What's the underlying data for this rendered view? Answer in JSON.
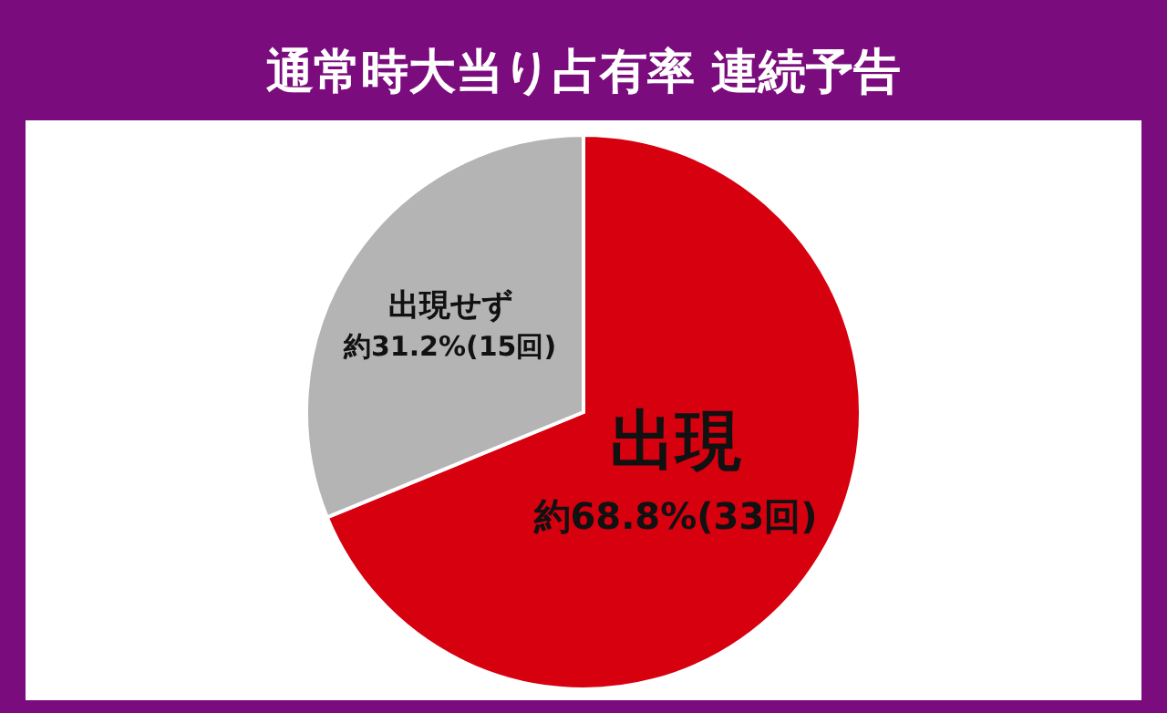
{
  "chart_data": {
    "type": "pie",
    "title": "通常時大当り占有率 連続予告",
    "categories": [
      "出現",
      "出現せず"
    ],
    "values": [
      68.8,
      31.2
    ],
    "colors": [
      "#d7000f",
      "#b4b4b4"
    ],
    "value_labels": [
      "約68.8%(33回)",
      "約31.2%(15回)"
    ]
  }
}
